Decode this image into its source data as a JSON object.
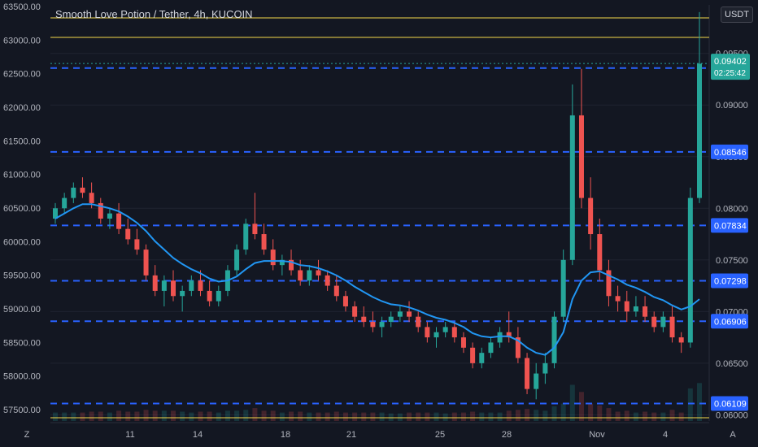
{
  "chart_title": "Smooth Love Potion / Tether, 4h, KUCOIN",
  "currency_button": "USDT",
  "corner_left": "Z",
  "corner_right": "A",
  "colors": {
    "background": "#131722",
    "up": "#26a69a",
    "down": "#ef5350",
    "ema": "#2196f3",
    "level_line": "#2962ff",
    "horizontal_yellow": "#f5d94a",
    "current_tag": "#26a69a"
  },
  "chart_data": {
    "type": "candlestick",
    "left_axis_ticks": [
      "63500.00",
      "63000.00",
      "62500.00",
      "62000.00",
      "61500.00",
      "61000.00",
      "60500.00",
      "60000.00",
      "59500.00",
      "59000.00",
      "58500.00",
      "58000.00",
      "57500.00"
    ],
    "right_axis_ticks": [
      "0.09500",
      "0.09000",
      "0.08500",
      "0.08000",
      "0.07500",
      "0.07000",
      "0.06500",
      "0.06000"
    ],
    "x_ticks": [
      "11",
      "14",
      "18",
      "21",
      "25",
      "28",
      "Nov",
      "4"
    ],
    "right_axis_range": [
      0.0594,
      0.0997
    ],
    "current_price": "0.09402",
    "countdown": "02:25:42",
    "levels": [
      "0.09358",
      "0.08546",
      "0.07834",
      "0.07298",
      "0.06906",
      "0.06109"
    ],
    "ohlc": [
      [
        0.079,
        0.0805,
        0.0785,
        0.08
      ],
      [
        0.08,
        0.0815,
        0.0795,
        0.081
      ],
      [
        0.081,
        0.0825,
        0.0805,
        0.082
      ],
      [
        0.082,
        0.083,
        0.081,
        0.0815
      ],
      [
        0.0815,
        0.0825,
        0.08,
        0.0805
      ],
      [
        0.0805,
        0.081,
        0.0785,
        0.079
      ],
      [
        0.079,
        0.08,
        0.078,
        0.0795
      ],
      [
        0.0795,
        0.0805,
        0.0775,
        0.078
      ],
      [
        0.078,
        0.079,
        0.0765,
        0.077
      ],
      [
        0.077,
        0.078,
        0.0755,
        0.076
      ],
      [
        0.076,
        0.0765,
        0.073,
        0.0735
      ],
      [
        0.0735,
        0.0745,
        0.0715,
        0.072
      ],
      [
        0.072,
        0.0735,
        0.0705,
        0.073
      ],
      [
        0.073,
        0.074,
        0.071,
        0.0715
      ],
      [
        0.0715,
        0.0725,
        0.07,
        0.072
      ],
      [
        0.072,
        0.0735,
        0.0715,
        0.073
      ],
      [
        0.073,
        0.074,
        0.0715,
        0.072
      ],
      [
        0.072,
        0.073,
        0.0705,
        0.071
      ],
      [
        0.071,
        0.0725,
        0.0705,
        0.072
      ],
      [
        0.072,
        0.0745,
        0.0715,
        0.074
      ],
      [
        0.074,
        0.0765,
        0.0735,
        0.076
      ],
      [
        0.076,
        0.079,
        0.0755,
        0.0785
      ],
      [
        0.0785,
        0.0815,
        0.077,
        0.0775
      ],
      [
        0.0775,
        0.0785,
        0.0755,
        0.076
      ],
      [
        0.076,
        0.077,
        0.074,
        0.0745
      ],
      [
        0.0745,
        0.0755,
        0.0735,
        0.075
      ],
      [
        0.075,
        0.076,
        0.0735,
        0.074
      ],
      [
        0.074,
        0.075,
        0.0725,
        0.073
      ],
      [
        0.073,
        0.0745,
        0.0725,
        0.074
      ],
      [
        0.074,
        0.075,
        0.073,
        0.0735
      ],
      [
        0.0735,
        0.074,
        0.072,
        0.0725
      ],
      [
        0.0725,
        0.0735,
        0.071,
        0.0715
      ],
      [
        0.0715,
        0.072,
        0.07,
        0.0705
      ],
      [
        0.0705,
        0.071,
        0.069,
        0.0695
      ],
      [
        0.0695,
        0.0705,
        0.0685,
        0.069
      ],
      [
        0.069,
        0.07,
        0.068,
        0.0685
      ],
      [
        0.0685,
        0.0695,
        0.0675,
        0.069
      ],
      [
        0.069,
        0.07,
        0.0685,
        0.0695
      ],
      [
        0.0695,
        0.0705,
        0.069,
        0.07
      ],
      [
        0.07,
        0.071,
        0.069,
        0.0695
      ],
      [
        0.0695,
        0.07,
        0.068,
        0.0685
      ],
      [
        0.0685,
        0.069,
        0.067,
        0.0675
      ],
      [
        0.0675,
        0.0685,
        0.0665,
        0.068
      ],
      [
        0.068,
        0.069,
        0.0675,
        0.0685
      ],
      [
        0.0685,
        0.069,
        0.067,
        0.0675
      ],
      [
        0.0675,
        0.068,
        0.066,
        0.0665
      ],
      [
        0.0665,
        0.067,
        0.0645,
        0.065
      ],
      [
        0.065,
        0.0665,
        0.0645,
        0.066
      ],
      [
        0.066,
        0.0675,
        0.0655,
        0.067
      ],
      [
        0.067,
        0.0685,
        0.0665,
        0.068
      ],
      [
        0.068,
        0.07,
        0.067,
        0.0675
      ],
      [
        0.0675,
        0.0685,
        0.065,
        0.0655
      ],
      [
        0.0655,
        0.066,
        0.062,
        0.0625
      ],
      [
        0.0625,
        0.065,
        0.0615,
        0.064
      ],
      [
        0.064,
        0.066,
        0.063,
        0.065
      ],
      [
        0.065,
        0.07,
        0.0645,
        0.0695
      ],
      [
        0.0695,
        0.076,
        0.069,
        0.075
      ],
      [
        0.075,
        0.092,
        0.0745,
        0.089
      ],
      [
        0.089,
        0.0935,
        0.08,
        0.081
      ],
      [
        0.081,
        0.083,
        0.076,
        0.0775
      ],
      [
        0.0775,
        0.079,
        0.073,
        0.074
      ],
      [
        0.074,
        0.075,
        0.0705,
        0.0715
      ],
      [
        0.0715,
        0.0725,
        0.07,
        0.071
      ],
      [
        0.071,
        0.072,
        0.069,
        0.07
      ],
      [
        0.07,
        0.0715,
        0.0695,
        0.0705
      ],
      [
        0.0705,
        0.0715,
        0.069,
        0.0695
      ],
      [
        0.0695,
        0.07,
        0.068,
        0.0685
      ],
      [
        0.0685,
        0.07,
        0.068,
        0.0695
      ],
      [
        0.0695,
        0.0705,
        0.067,
        0.0675
      ],
      [
        0.0675,
        0.068,
        0.066,
        0.067
      ],
      [
        0.067,
        0.082,
        0.0665,
        0.081
      ],
      [
        0.081,
        0.099,
        0.0805,
        0.094
      ]
    ],
    "ema": [
      0.079,
      0.0795,
      0.08,
      0.0804,
      0.0804,
      0.0802,
      0.08,
      0.0797,
      0.0792,
      0.0786,
      0.0778,
      0.0768,
      0.076,
      0.0752,
      0.0746,
      0.0741,
      0.0737,
      0.0732,
      0.0729,
      0.073,
      0.0734,
      0.0741,
      0.0747,
      0.0749,
      0.0749,
      0.0749,
      0.0748,
      0.0745,
      0.0744,
      0.0742,
      0.0739,
      0.0735,
      0.073,
      0.0724,
      0.0719,
      0.0714,
      0.071,
      0.0707,
      0.0706,
      0.0704,
      0.0701,
      0.0697,
      0.0694,
      0.0692,
      0.0689,
      0.0685,
      0.0679,
      0.0676,
      0.0675,
      0.0676,
      0.0676,
      0.0672,
      0.0665,
      0.066,
      0.0658,
      0.0665,
      0.068,
      0.0712,
      0.073,
      0.0738,
      0.0739,
      0.0735,
      0.0731,
      0.0726,
      0.0723,
      0.0719,
      0.0714,
      0.0711,
      0.0706,
      0.0702,
      0.0705,
      0.0712
    ]
  }
}
